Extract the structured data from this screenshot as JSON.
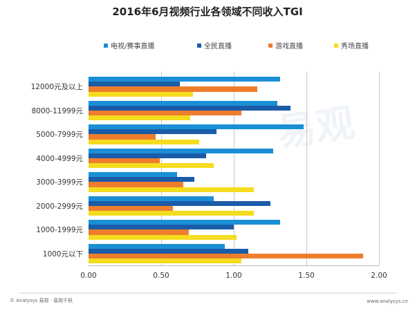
{
  "chart_data": {
    "type": "bar",
    "orientation": "horizontal",
    "title": "2016年6月视频行业各领域不同收入TGI",
    "xlabel": "",
    "ylabel": "",
    "xlim": [
      0,
      2.0
    ],
    "x_ticks": [
      "0.00",
      "0.50",
      "1.00",
      "1.50",
      "2.00"
    ],
    "grid": "vertical",
    "legend_position": "top",
    "categories": [
      "12000元及以上",
      "8000-11999元",
      "5000-7999元",
      "4000-4999元",
      "3000-3999元",
      "2000-2999元",
      "1000-1999元",
      "1000元以下"
    ],
    "series": [
      {
        "name": "电视/赛事直播",
        "color": "#1b8fd6",
        "values": [
          1.32,
          1.3,
          1.48,
          1.27,
          0.61,
          0.86,
          1.32,
          0.94
        ]
      },
      {
        "name": "全民直播",
        "color": "#1a5ca8",
        "values": [
          0.63,
          1.39,
          0.88,
          0.81,
          0.73,
          1.25,
          1.0,
          1.1
        ]
      },
      {
        "name": "游戏直播",
        "color": "#ee7d2d",
        "values": [
          1.16,
          1.05,
          0.46,
          0.49,
          0.65,
          0.58,
          0.69,
          1.89
        ]
      },
      {
        "name": "秀场直播",
        "color": "#f5dc1e",
        "values": [
          0.72,
          0.7,
          0.76,
          0.86,
          1.14,
          1.14,
          1.02,
          1.05
        ]
      }
    ]
  },
  "footer": {
    "source": "© Analysys 易观 · 易观千帆",
    "url": "www.analysys.cn"
  },
  "watermark": "易观"
}
